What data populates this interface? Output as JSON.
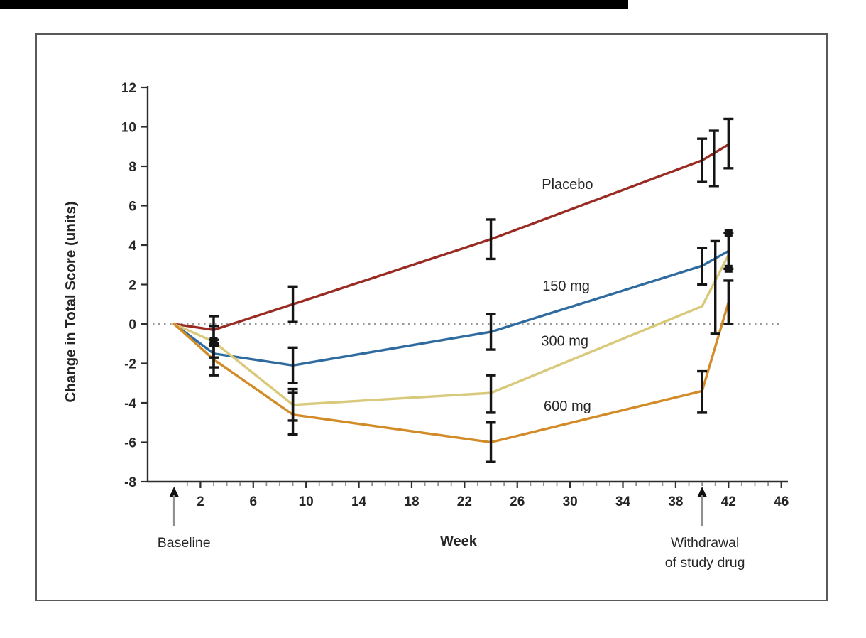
{
  "colors": {
    "axis": "#2d2d2d",
    "text": "#262626",
    "error_bar": "#151515",
    "dotted_line": "#999999",
    "frame_border": "#58595b",
    "top_strip": "#000000",
    "placebo": "#992b23",
    "dose_150": "#2f6b9f",
    "dose_300": "#d9c97a",
    "dose_600": "#d28b27"
  },
  "chart_data": {
    "type": "line",
    "title": "",
    "xlabel": "Week",
    "ylabel": "Change in Total Score  (units)",
    "xlim": [
      -2,
      46.5
    ],
    "ylim": [
      -8,
      12
    ],
    "x_tick_labels": [
      2,
      6,
      10,
      14,
      18,
      22,
      26,
      30,
      34,
      38,
      42,
      46
    ],
    "x_minor_ticks_every_week": true,
    "y_ticks": [
      12,
      10,
      8,
      6,
      4,
      2,
      0,
      -2,
      -4,
      -6,
      -8
    ],
    "grid": false,
    "zero_line_dotted": true,
    "legend_position": "inline-labels",
    "series": [
      {
        "name": "Placebo",
        "color": "#992b23",
        "x": [
          0,
          3,
          9,
          24,
          40,
          42
        ],
        "y": [
          0,
          -0.3,
          1.0,
          4.3,
          8.3,
          9.1
        ],
        "error_bars": [
          {
            "x": 3,
            "lo": -1.0,
            "hi": 0.4
          },
          {
            "x": 9,
            "lo": 0.1,
            "hi": 1.9
          },
          {
            "x": 24,
            "lo": 3.3,
            "hi": 5.3
          },
          {
            "x": 40,
            "lo": 7.2,
            "hi": 9.4
          },
          {
            "x": 40.9,
            "lo": 7.0,
            "hi": 9.8
          },
          {
            "x": 42,
            "lo": 7.9,
            "hi": 10.4
          }
        ],
        "label_pos": {
          "x": 29.8,
          "y": 7.1
        }
      },
      {
        "name": "150 mg",
        "color": "#2f6b9f",
        "x": [
          0,
          3,
          9,
          24,
          40,
          42
        ],
        "y": [
          0,
          -1.5,
          -2.1,
          -0.4,
          2.95,
          3.7
        ],
        "error_bars": [
          {
            "x": 3,
            "lo": -2.2,
            "hi": -0.8
          },
          {
            "x": 9,
            "lo": -3.0,
            "hi": -1.2
          },
          {
            "x": 24,
            "lo": -1.3,
            "hi": 0.5
          },
          {
            "x": 40,
            "lo": 2.0,
            "hi": 3.85
          },
          {
            "x": 42,
            "lo": 2.8,
            "hi": 4.6
          }
        ],
        "label_pos": {
          "x": 29.7,
          "y": 1.95
        }
      },
      {
        "name": "300 mg",
        "color": "#d9c97a",
        "x": [
          0,
          3,
          9,
          24,
          40,
          42
        ],
        "y": [
          0,
          -0.9,
          -4.1,
          -3.5,
          0.9,
          3.5
        ],
        "error_bars": [
          {
            "x": 3,
            "lo": -1.7,
            "hi": -0.1
          },
          {
            "x": 9,
            "lo": -4.9,
            "hi": -3.3
          },
          {
            "x": 24,
            "lo": -4.5,
            "hi": -2.6
          },
          {
            "x": 41,
            "lo": -0.5,
            "hi": 4.2
          }
        ],
        "label_pos": {
          "x": 29.6,
          "y": -0.85
        }
      },
      {
        "name": "600 mg",
        "color": "#d28b27",
        "x": [
          0,
          3,
          9,
          24,
          40,
          42
        ],
        "y": [
          0,
          -1.8,
          -4.6,
          -6.0,
          -3.4,
          1.1
        ],
        "error_bars": [
          {
            "x": 3,
            "lo": -2.6,
            "hi": -1.1
          },
          {
            "x": 9,
            "lo": -5.6,
            "hi": -3.5
          },
          {
            "x": 24,
            "lo": -7.0,
            "hi": -5.0
          },
          {
            "x": 40,
            "lo": -4.5,
            "hi": -2.4
          },
          {
            "x": 42,
            "lo": 0.0,
            "hi": 2.2
          }
        ],
        "label_pos": {
          "x": 29.8,
          "y": -4.15
        }
      }
    ],
    "extra_markers": [
      {
        "x": 3,
        "y": -0.85
      },
      {
        "x": 42,
        "y": 2.8
      },
      {
        "x": 42,
        "y": 4.6
      }
    ],
    "annotations": [
      {
        "week": 0,
        "dx": 14,
        "lines": [
          "Baseline"
        ]
      },
      {
        "week": 40,
        "dx": 4,
        "lines": [
          "Withdrawal",
          "of study drug"
        ]
      }
    ]
  }
}
